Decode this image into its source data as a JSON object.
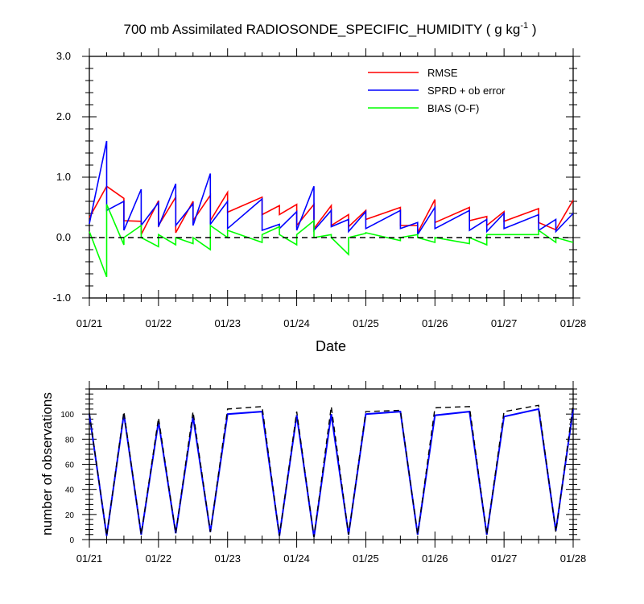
{
  "title": {
    "main": "700 mb Assimilated RADIOSONDE_SPECIFIC_HUMIDITY ( g kg",
    "sup": "-1",
    "close": " )"
  },
  "colors": {
    "rmse": "#ff0000",
    "sprd": "#0000ff",
    "bias": "#00ff00",
    "obs_used": "#0000ff",
    "obs_total": "#000000",
    "zero_line": "#000000"
  },
  "chart_data": [
    {
      "type": "line",
      "name": "error-stats",
      "title": "700 mb Assimilated RADIOSONDE_SPECIFIC_HUMIDITY ( g kg-1 )",
      "xlabel": "Date",
      "ylabel": "",
      "xlim": [
        0,
        7
      ],
      "ylim": [
        -1.0,
        3.0
      ],
      "x_tick_labels": [
        "01/21",
        "01/22",
        "01/23",
        "01/24",
        "01/25",
        "01/26",
        "01/27",
        "01/28"
      ],
      "y_ticks": [
        -1.0,
        0.0,
        1.0,
        2.0,
        3.0
      ],
      "y_tick_labels": [
        "-1.0",
        "0.0",
        "1.0",
        "2.0",
        "3.0"
      ],
      "legend": {
        "placement": "top-right",
        "entries": [
          "RMSE",
          "SPRD + ob error",
          "BIAS (O-F)"
        ]
      },
      "series": [
        {
          "name": "RMSE",
          "color": "#ff0000",
          "points": [
            [
              0,
              0.33
            ],
            [
              0.25,
              0.85
            ],
            [
              0.5,
              0.65
            ],
            [
              0.5,
              0.28
            ],
            [
              0.75,
              0.27
            ],
            [
              0.75,
              0.05
            ],
            [
              1,
              0.61
            ],
            [
              1,
              0.2
            ],
            [
              1.25,
              0.67
            ],
            [
              1.25,
              0.08
            ],
            [
              1.5,
              0.6
            ],
            [
              1.5,
              0.28
            ],
            [
              1.75,
              0.7
            ],
            [
              1.75,
              0.28
            ],
            [
              2,
              0.75
            ],
            [
              2,
              0.42
            ],
            [
              2.5,
              0.67
            ],
            [
              2.5,
              0.38
            ],
            [
              2.75,
              0.53
            ],
            [
              2.75,
              0.38
            ],
            [
              3,
              0.55
            ],
            [
              3,
              0.2
            ],
            [
              3.25,
              0.55
            ],
            [
              3.25,
              0.15
            ],
            [
              3.5,
              0.53
            ],
            [
              3.5,
              0.2
            ],
            [
              3.75,
              0.38
            ],
            [
              3.75,
              0.18
            ],
            [
              4,
              0.45
            ],
            [
              4,
              0.3
            ],
            [
              4.5,
              0.5
            ],
            [
              4.5,
              0.2
            ],
            [
              4.75,
              0.2
            ],
            [
              4.75,
              0.08
            ],
            [
              5,
              0.63
            ],
            [
              5,
              0.25
            ],
            [
              5.5,
              0.5
            ],
            [
              5.5,
              0.28
            ],
            [
              5.75,
              0.35
            ],
            [
              5.75,
              0.2
            ],
            [
              6,
              0.43
            ],
            [
              6,
              0.27
            ],
            [
              6.5,
              0.48
            ],
            [
              6.5,
              0.25
            ],
            [
              6.75,
              0.13
            ],
            [
              7,
              0.62
            ]
          ]
        },
        {
          "name": "SPRD + ob error",
          "color": "#0000ff",
          "points": [
            [
              0,
              0.23
            ],
            [
              0.25,
              1.6
            ],
            [
              0.25,
              0.45
            ],
            [
              0.5,
              0.6
            ],
            [
              0.5,
              0.12
            ],
            [
              0.75,
              0.8
            ],
            [
              0.75,
              0.2
            ],
            [
              1,
              0.58
            ],
            [
              1,
              0.18
            ],
            [
              1.25,
              0.89
            ],
            [
              1.25,
              0.2
            ],
            [
              1.5,
              0.56
            ],
            [
              1.5,
              0.2
            ],
            [
              1.75,
              1.06
            ],
            [
              1.75,
              0.22
            ],
            [
              2,
              0.6
            ],
            [
              2,
              0.15
            ],
            [
              2.5,
              0.64
            ],
            [
              2.5,
              0.12
            ],
            [
              2.75,
              0.22
            ],
            [
              2.75,
              0.15
            ],
            [
              3,
              0.43
            ],
            [
              3,
              0.12
            ],
            [
              3.25,
              0.85
            ],
            [
              3.25,
              0.12
            ],
            [
              3.5,
              0.45
            ],
            [
              3.5,
              0.18
            ],
            [
              3.75,
              0.3
            ],
            [
              3.75,
              0.1
            ],
            [
              4,
              0.43
            ],
            [
              4,
              0.15
            ],
            [
              4.5,
              0.45
            ],
            [
              4.5,
              0.15
            ],
            [
              4.75,
              0.25
            ],
            [
              4.75,
              0.05
            ],
            [
              5,
              0.5
            ],
            [
              5,
              0.15
            ],
            [
              5.5,
              0.45
            ],
            [
              5.5,
              0.12
            ],
            [
              5.75,
              0.3
            ],
            [
              5.75,
              0.1
            ],
            [
              6,
              0.4
            ],
            [
              6,
              0.15
            ],
            [
              6.5,
              0.38
            ],
            [
              6.5,
              0.12
            ],
            [
              6.75,
              0.3
            ],
            [
              6.75,
              0.1
            ],
            [
              7,
              0.4
            ]
          ]
        },
        {
          "name": "BIAS (O-F)",
          "color": "#00ff00",
          "points": [
            [
              0,
              0.1
            ],
            [
              0.25,
              -0.65
            ],
            [
              0.25,
              0.55
            ],
            [
              0.5,
              -0.12
            ],
            [
              0.5,
              0.0
            ],
            [
              0.75,
              0.2
            ],
            [
              0.75,
              0.0
            ],
            [
              1,
              -0.15
            ],
            [
              1,
              0.05
            ],
            [
              1.25,
              -0.12
            ],
            [
              1.25,
              0.0
            ],
            [
              1.5,
              -0.1
            ],
            [
              1.5,
              0.0
            ],
            [
              1.75,
              -0.2
            ],
            [
              1.75,
              0.2
            ],
            [
              2,
              0.0
            ],
            [
              2,
              0.12
            ],
            [
              2.5,
              -0.08
            ],
            [
              2.5,
              0.05
            ],
            [
              2.75,
              0.18
            ],
            [
              2.75,
              0.05
            ],
            [
              3,
              -0.12
            ],
            [
              3,
              0.05
            ],
            [
              3.25,
              0.28
            ],
            [
              3.25,
              0.0
            ],
            [
              3.5,
              0.05
            ],
            [
              3.5,
              0.0
            ],
            [
              3.75,
              -0.28
            ],
            [
              3.75,
              0.0
            ],
            [
              4,
              0.07
            ],
            [
              4,
              0.08
            ],
            [
              4.5,
              -0.05
            ],
            [
              4.5,
              0.0
            ],
            [
              4.75,
              0.05
            ],
            [
              4.75,
              0.0
            ],
            [
              5,
              -0.08
            ],
            [
              5,
              0.0
            ],
            [
              5.5,
              -0.1
            ],
            [
              5.5,
              0.0
            ],
            [
              5.75,
              -0.12
            ],
            [
              5.75,
              0.05
            ],
            [
              6,
              0.05
            ],
            [
              6,
              0.05
            ],
            [
              6.5,
              0.05
            ],
            [
              6.5,
              0.12
            ],
            [
              6.75,
              -0.08
            ],
            [
              6.75,
              0.0
            ],
            [
              7,
              -0.08
            ]
          ]
        },
        {
          "name": "zero",
          "color": "#000000",
          "dashed": true,
          "points": [
            [
              0,
              0
            ],
            [
              7,
              0
            ]
          ]
        }
      ]
    },
    {
      "type": "line",
      "name": "observation-counts",
      "title": "",
      "xlabel": "",
      "ylabel": "number of observations",
      "xlim": [
        0,
        7
      ],
      "ylim": [
        0,
        120
      ],
      "x_tick_labels": [
        "01/21",
        "01/22",
        "01/23",
        "01/24",
        "01/25",
        "01/26",
        "01/27",
        "01/28"
      ],
      "y_ticks": [
        0,
        20,
        40,
        60,
        80,
        100
      ],
      "y_tick_labels": [
        "0",
        "20",
        "40",
        "60",
        "80",
        "100"
      ],
      "series": [
        {
          "name": "used",
          "color": "#0000ff",
          "dashed": false,
          "points": [
            [
              0,
              100
            ],
            [
              0.25,
              3
            ],
            [
              0.5,
              100
            ],
            [
              0.75,
              4
            ],
            [
              1,
              94
            ],
            [
              1.25,
              5
            ],
            [
              1.5,
              98
            ],
            [
              1.75,
              6
            ],
            [
              2,
              100
            ],
            [
              2.5,
              102
            ],
            [
              2.75,
              3
            ],
            [
              3,
              99
            ],
            [
              3.25,
              2
            ],
            [
              3.5,
              100
            ],
            [
              3.75,
              4
            ],
            [
              4,
              100
            ],
            [
              4.5,
              102
            ],
            [
              4.75,
              4
            ],
            [
              5,
              99
            ],
            [
              5.5,
              102
            ],
            [
              5.75,
              4
            ],
            [
              6,
              98
            ],
            [
              6.5,
              104
            ],
            [
              6.75,
              7
            ],
            [
              7,
              104
            ]
          ]
        },
        {
          "name": "total",
          "color": "#000000",
          "dashed": true,
          "points": [
            [
              0,
              101
            ],
            [
              0.25,
              3
            ],
            [
              0.5,
              102
            ],
            [
              0.75,
              4
            ],
            [
              1,
              97
            ],
            [
              1.25,
              5
            ],
            [
              1.5,
              102
            ],
            [
              1.75,
              6
            ],
            [
              2,
              104
            ],
            [
              2.5,
              106
            ],
            [
              2.75,
              3
            ],
            [
              3,
              102
            ],
            [
              3.25,
              2
            ],
            [
              3.5,
              106
            ],
            [
              3.75,
              4
            ],
            [
              4,
              102
            ],
            [
              4.5,
              103
            ],
            [
              4.75,
              4
            ],
            [
              5,
              105
            ],
            [
              5.5,
              106
            ],
            [
              5.75,
              4
            ],
            [
              6,
              102
            ],
            [
              6.5,
              107
            ],
            [
              6.75,
              6
            ],
            [
              7,
              108
            ]
          ]
        }
      ]
    }
  ]
}
